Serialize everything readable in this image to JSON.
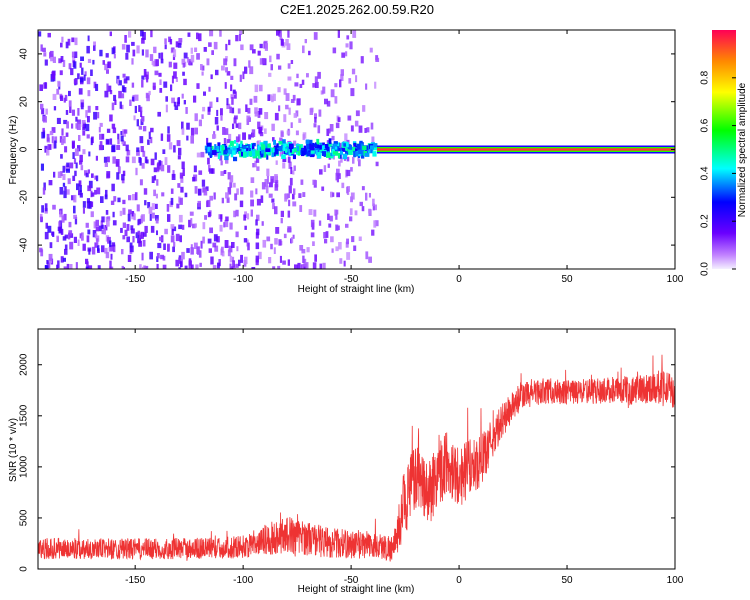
{
  "title": "C2E1.2025.262.00.59.R20",
  "chart_data": [
    {
      "type": "heatmap",
      "title": "C2E1.2025.262.00.59.R20",
      "xlabel": "Height of straight line (km)",
      "ylabel": "Frequency (Hz)",
      "xlim": [
        -195,
        100
      ],
      "ylim": [
        -50,
        50
      ],
      "xticks": [
        -150,
        -100,
        -50,
        0,
        50,
        100
      ],
      "yticks": [
        -40,
        -20,
        0,
        20,
        40
      ],
      "colorbar": {
        "label": "Normalized spectral amplitude",
        "range": [
          0,
          1
        ],
        "ticks": [
          0.0,
          0.2,
          0.4,
          0.6,
          0.8
        ],
        "tick_labels": [
          "0.0",
          "0.2",
          "0.4",
          "0.6",
          "0.8"
        ]
      },
      "regions": [
        {
          "name": "broadband noise",
          "x": [
            -195,
            -38
          ],
          "amplitude": [
            0.05,
            0.25
          ]
        },
        {
          "name": "scattered echo",
          "x": [
            -118,
            -40
          ],
          "center_freq": 0,
          "amplitude": [
            0.25,
            0.5
          ]
        },
        {
          "name": "strong carrier",
          "x": [
            -38,
            100
          ],
          "center_freq": 0,
          "amplitude": [
            0.8,
            1.0
          ]
        }
      ]
    },
    {
      "type": "line",
      "xlabel": "Height of straight line (km)",
      "ylabel": "SNR (10 * v/v)",
      "xlim": [
        -195,
        100
      ],
      "ylim": [
        0,
        2350
      ],
      "xticks": [
        -150,
        -100,
        -50,
        0,
        50,
        100
      ],
      "yticks": [
        0,
        500,
        1000,
        1500,
        2000
      ],
      "series": [
        {
          "name": "SNR",
          "color": "#ee3333",
          "x": [
            -195,
            -170,
            -150,
            -130,
            -110,
            -95,
            -90,
            -80,
            -70,
            -60,
            -50,
            -40,
            -30,
            -25,
            -20,
            -15,
            -10,
            -5,
            0,
            5,
            10,
            15,
            20,
            25,
            30,
            40,
            50,
            60,
            70,
            80,
            90,
            95,
            100
          ],
          "values": [
            200,
            200,
            195,
            200,
            205,
            230,
            280,
            340,
            300,
            260,
            240,
            230,
            200,
            700,
            900,
            700,
            950,
            1050,
            900,
            1000,
            1050,
            1250,
            1450,
            1600,
            1700,
            1750,
            1720,
            1740,
            1750,
            1750,
            1780,
            1800,
            1700
          ],
          "noise_amplitude": [
            150,
            150,
            150,
            150,
            150,
            170,
            220,
            260,
            240,
            220,
            200,
            180,
            200,
            500,
            450,
            500,
            500,
            450,
            450,
            400,
            350,
            300,
            250,
            220,
            200,
            180,
            180,
            180,
            180,
            200,
            220,
            300,
            200
          ]
        }
      ]
    }
  ]
}
